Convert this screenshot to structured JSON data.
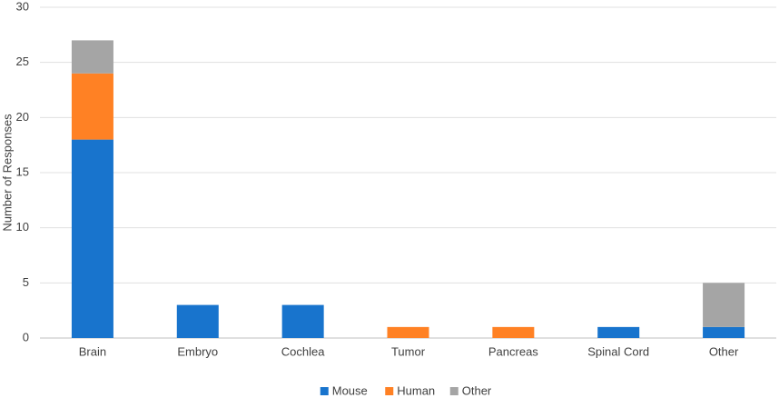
{
  "chart_data": {
    "type": "stacked-bar",
    "y_label": "Number of Responses",
    "categories": [
      "Brain",
      "Embryo",
      "Cochlea",
      "Tumor",
      "Pancreas",
      "Spinal Cord",
      "Other"
    ],
    "series": [
      {
        "name": "Mouse",
        "color": "#1874cd",
        "values": [
          18,
          3,
          3,
          0,
          0,
          1,
          1
        ]
      },
      {
        "name": "Human",
        "color": "#ff8124",
        "values": [
          6,
          0,
          0,
          1,
          1,
          0,
          0
        ]
      },
      {
        "name": "Other",
        "color": "#a5a5a5",
        "values": [
          3,
          0,
          0,
          0,
          0,
          0,
          4
        ]
      }
    ],
    "ylim": [
      0,
      30
    ],
    "yticks": [
      0,
      5,
      10,
      15,
      20,
      25,
      30
    ],
    "grid": true,
    "legend": "bottom"
  }
}
